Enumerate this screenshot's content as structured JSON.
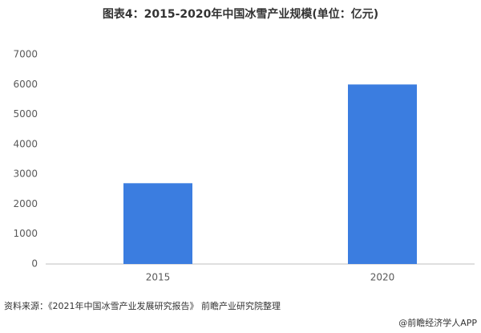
{
  "chart_data": {
    "type": "bar",
    "title": "图表4：2015-2020年中国冰雪产业规模(单位：亿元)",
    "categories": [
      "2015",
      "2020"
    ],
    "values": [
      2700,
      6000
    ],
    "color": "#3b7de0",
    "ylim": [
      0,
      7000
    ],
    "yticks": [
      0,
      1000,
      2000,
      3000,
      4000,
      5000,
      6000,
      7000
    ],
    "grid": false,
    "source": "资料来源：《2021年中国冰雪产业发展研究报告》 前瞻产业研究院整理",
    "credit": "@前瞻经济学人APP"
  }
}
